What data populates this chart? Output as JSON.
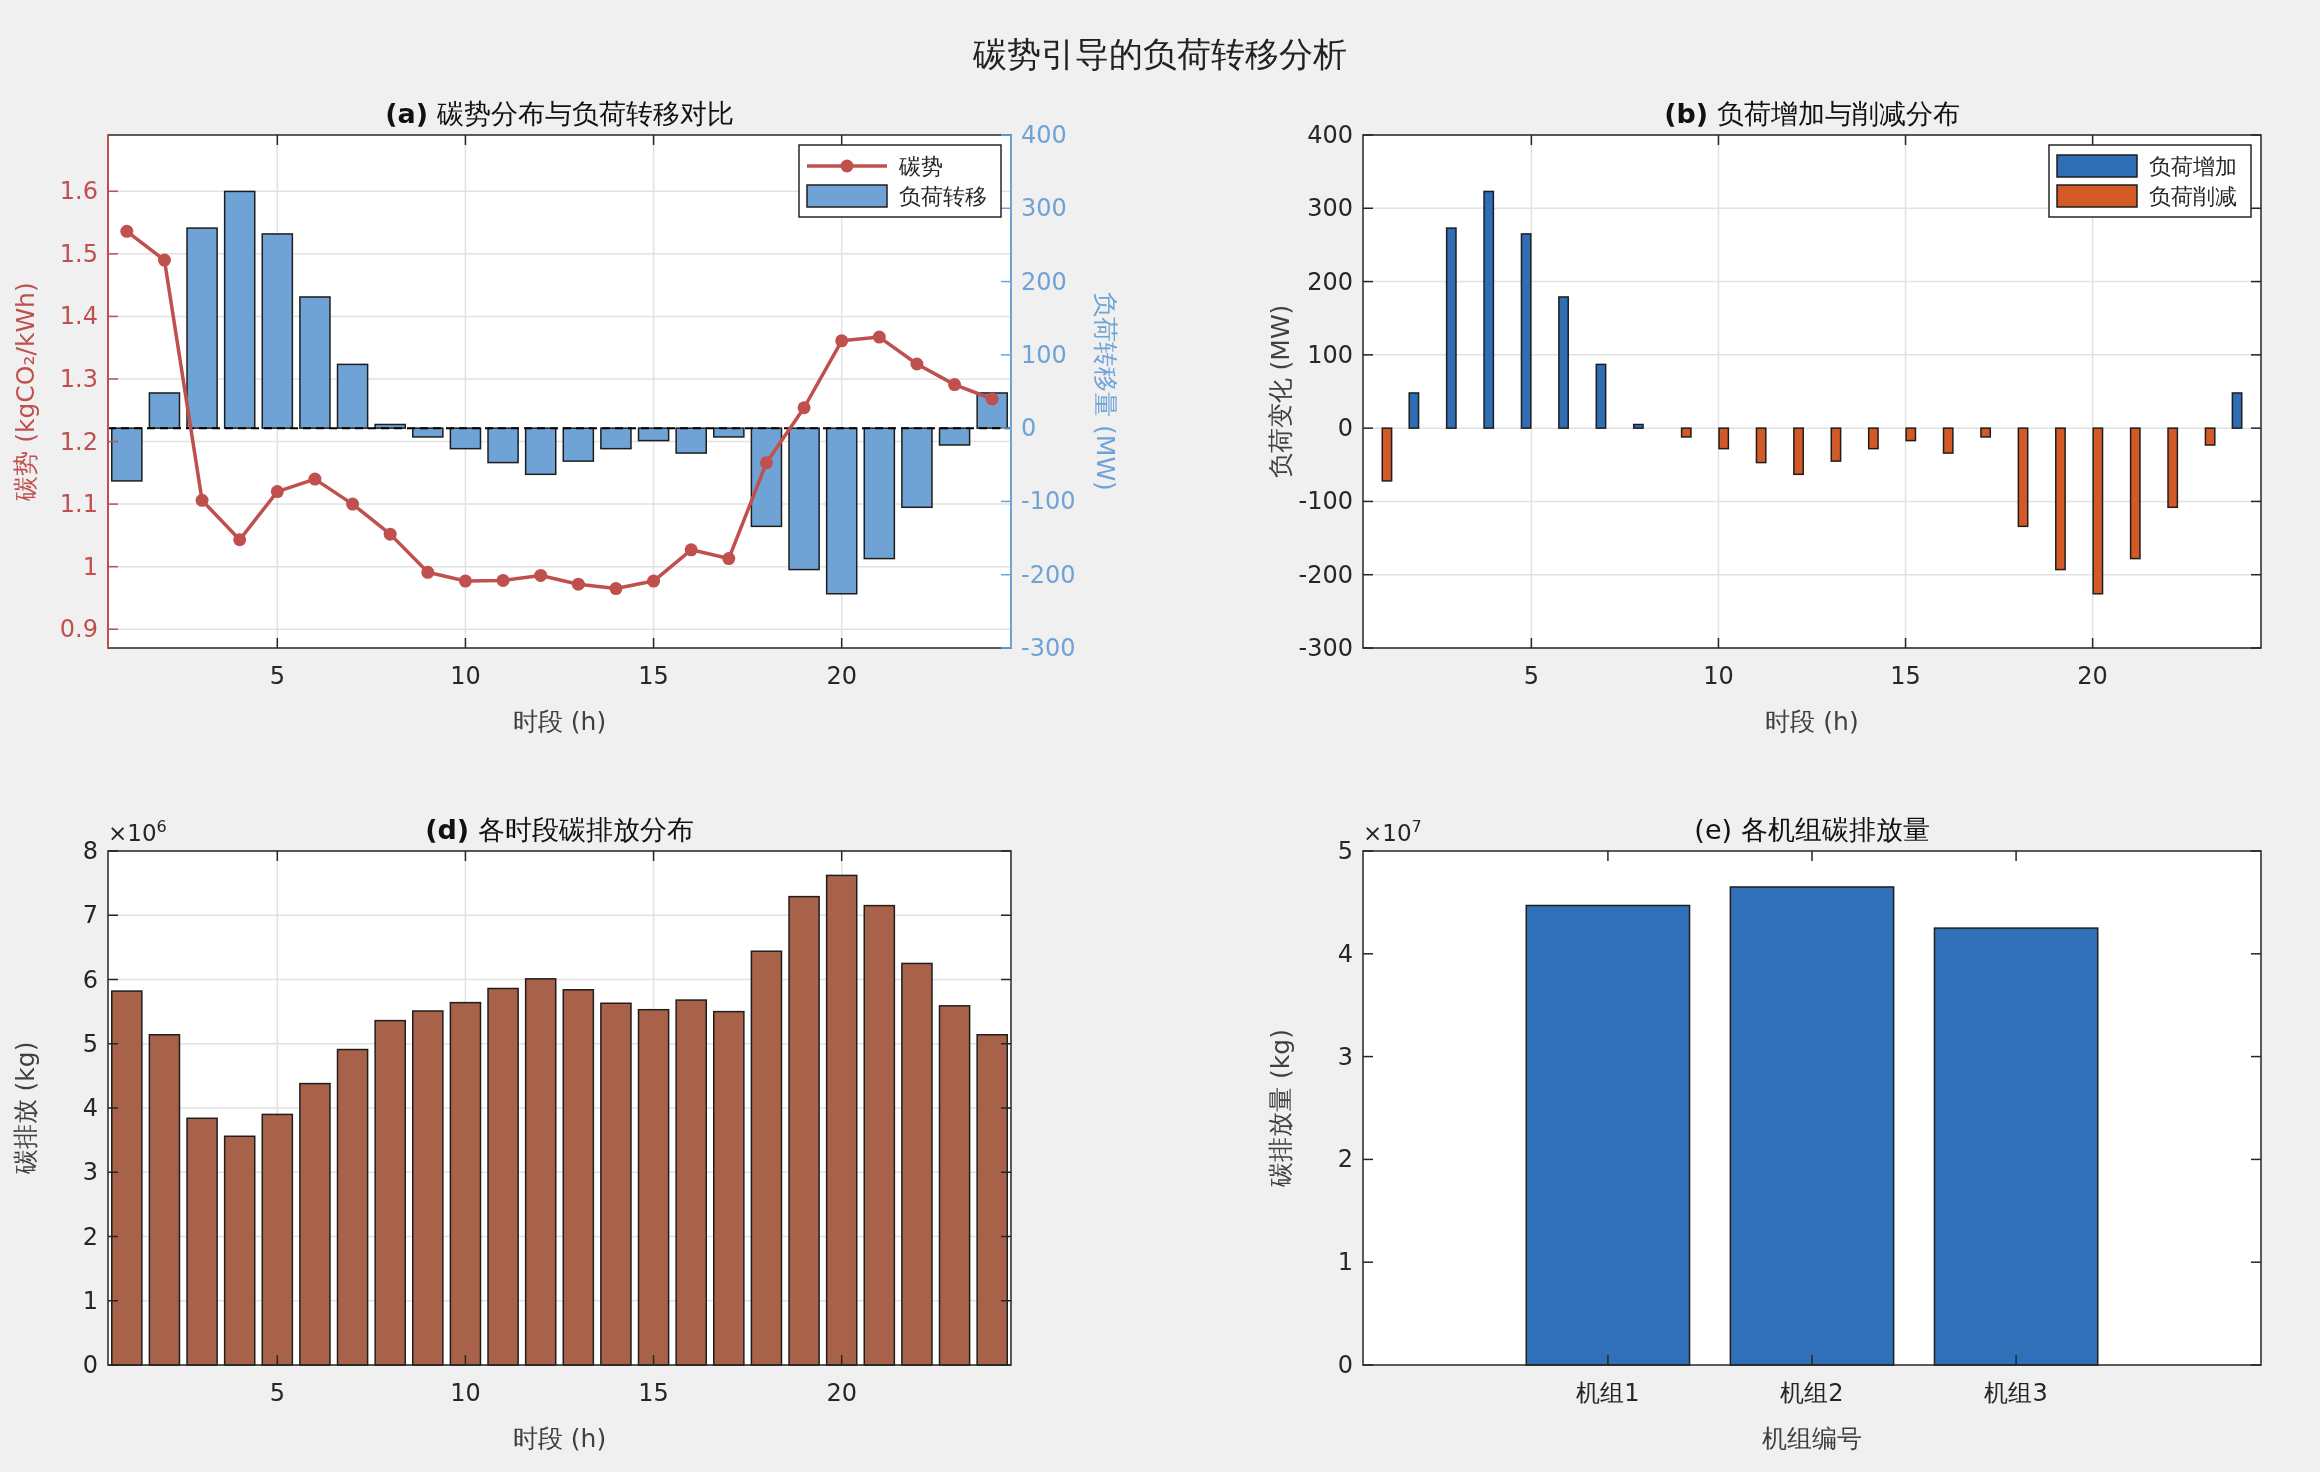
{
  "chart_data": [
    {
      "type": "bar",
      "title": "**(a)** 碳势分布与负荷转移对比",
      "xlabel": "时段 (h)",
      "ylabel": "碳势 (kgCO₂/kWh)",
      "y2label": "负荷转移量 (MW)",
      "x": [
        1,
        2,
        3,
        4,
        5,
        6,
        7,
        8,
        9,
        10,
        11,
        12,
        13,
        14,
        15,
        16,
        17,
        18,
        19,
        20,
        21,
        22,
        23,
        24
      ],
      "xlim": [
        0.5,
        24.5
      ],
      "xticks": [
        5,
        10,
        15,
        20
      ],
      "ylim": [
        0.87,
        1.69
      ],
      "yticks": [
        0.9,
        1,
        1.1,
        1.2,
        1.3,
        1.4,
        1.5,
        1.6
      ],
      "y2lim": [
        -300,
        400
      ],
      "y2ticks": [
        -300,
        -200,
        -100,
        0,
        100,
        200,
        300,
        400
      ],
      "grid": true,
      "legend": "top right",
      "marker": "circle",
      "series": [
        {
          "name": "碳势",
          "type": "line",
          "color": "#c0504d",
          "values": [
            1.536,
            1.49,
            1.106,
            1.043,
            1.12,
            1.14,
            1.1,
            1.052,
            0.991,
            0.977,
            0.978,
            0.986,
            0.972,
            0.965,
            0.977,
            1.027,
            1.013,
            1.166,
            1.254,
            1.361,
            1.367,
            1.324,
            1.291,
            1.268
          ]
        },
        {
          "name": "负荷转移",
          "type": "bar",
          "axis": "y2",
          "color": "#6fa3d5",
          "values": [
            -72,
            48,
            273,
            323,
            265,
            179,
            87,
            5,
            -12,
            -28,
            -47,
            -63,
            -45,
            -28,
            -17,
            -34,
            -12,
            -134,
            -193,
            -226,
            -178,
            -108,
            -23,
            48
          ]
        }
      ],
      "ref_lines": [
        {
          "axis": "y2",
          "value": 0,
          "line_style": "dashed",
          "color": "#000000"
        }
      ],
      "annotations": [
        "碳势引导的负荷转移分析"
      ]
    },
    {
      "type": "bar",
      "title": "**(b)** 负荷增加与削减分布",
      "xlabel": "时段 (h)",
      "ylabel": "负荷变化 (MW)",
      "x": [
        1,
        2,
        3,
        4,
        5,
        6,
        7,
        8,
        9,
        10,
        11,
        12,
        13,
        14,
        15,
        16,
        17,
        18,
        19,
        20,
        21,
        22,
        23,
        24
      ],
      "xlim": [
        0.5,
        24.5
      ],
      "xticks": [
        5,
        10,
        15,
        20
      ],
      "ylim": [
        -300,
        400
      ],
      "yticks": [
        -300,
        -200,
        -100,
        0,
        100,
        200,
        300,
        400
      ],
      "grid": true,
      "legend": "top right",
      "series": [
        {
          "name": "负荷增加",
          "color": "#2f6db5",
          "values": [
            null,
            48,
            273,
            323,
            265,
            179,
            87,
            5,
            null,
            null,
            null,
            null,
            null,
            null,
            null,
            null,
            null,
            null,
            null,
            null,
            null,
            null,
            null,
            48
          ]
        },
        {
          "name": "负荷削减",
          "color": "#d35a27",
          "values": [
            -72,
            null,
            null,
            null,
            null,
            null,
            null,
            null,
            -12,
            -28,
            -47,
            -63,
            -45,
            -28,
            -17,
            -34,
            -12,
            -134,
            -193,
            -226,
            -178,
            -108,
            -23,
            null
          ]
        }
      ]
    },
    {
      "type": "bar",
      "title": "**(d)** 各时段碳排放分布",
      "xlabel": "时段 (h)",
      "ylabel": "碳排放 (kg)",
      "x": [
        1,
        2,
        3,
        4,
        5,
        6,
        7,
        8,
        9,
        10,
        11,
        12,
        13,
        14,
        15,
        16,
        17,
        18,
        19,
        20,
        21,
        22,
        23,
        24
      ],
      "xlim": [
        0.5,
        24.5
      ],
      "xticks": [
        5,
        10,
        15,
        20
      ],
      "ylim": [
        0,
        8
      ],
      "yticks": [
        0,
        1,
        2,
        3,
        4,
        5,
        6,
        7,
        8
      ],
      "grid": true,
      "color": "#a8624a",
      "values": [
        5.82,
        5.14,
        3.84,
        3.56,
        3.9,
        4.38,
        4.91,
        5.36,
        5.51,
        5.64,
        5.86,
        6.01,
        5.84,
        5.63,
        5.53,
        5.68,
        5.5,
        6.44,
        7.29,
        7.62,
        7.15,
        6.25,
        5.59,
        5.14
      ],
      "annotations": [
        "×10$^{6}$"
      ]
    },
    {
      "type": "bar",
      "title": "(e) 各机组碳排放量",
      "xlabel": "机组编号",
      "ylabel": "碳排放量 (kg)",
      "categories": [
        "机组1",
        "机组2",
        "机组3"
      ],
      "ylim": [
        0,
        5
      ],
      "yticks": [
        0,
        1,
        2,
        3,
        4,
        5
      ],
      "color": "#3070b8",
      "values": [
        4.47,
        4.65,
        4.25
      ],
      "annotations": [
        "×10$^{7}$"
      ]
    }
  ]
}
